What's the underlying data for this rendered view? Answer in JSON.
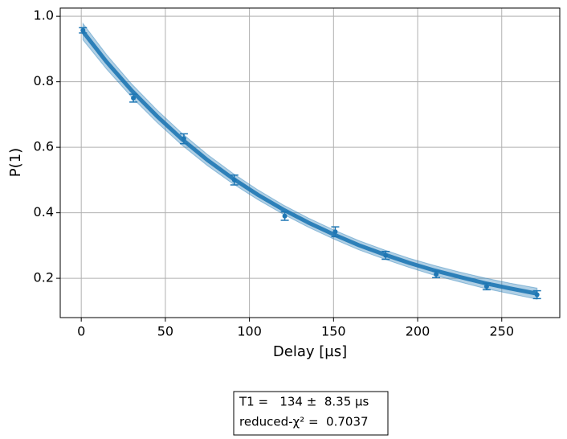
{
  "chart_data": {
    "type": "scatter",
    "xlabel": "Delay [µs]",
    "ylabel": "P(1)",
    "x": [
      1,
      31,
      61,
      91,
      121,
      151,
      181,
      211,
      241,
      271
    ],
    "series": [
      {
        "color": "#1f77b4",
        "values": [
          0.957,
          0.75,
          0.626,
          0.5,
          0.39,
          0.342,
          0.27,
          0.212,
          0.175,
          0.15
        ],
        "errors": [
          0.008,
          0.012,
          0.015,
          0.015,
          0.013,
          0.015,
          0.012,
          0.01,
          0.01,
          0.012
        ]
      }
    ],
    "fit": {
      "color": "#1f77b4",
      "x": [
        1,
        15,
        30,
        45,
        60,
        75,
        90,
        105,
        120,
        135,
        150,
        165,
        180,
        195,
        210,
        225,
        240,
        255,
        271
      ],
      "values": [
        0.953,
        0.861,
        0.773,
        0.695,
        0.624,
        0.561,
        0.505,
        0.455,
        0.41,
        0.37,
        0.334,
        0.301,
        0.273,
        0.247,
        0.224,
        0.204,
        0.185,
        0.169,
        0.153
      ],
      "upper": [
        0.978,
        0.883,
        0.793,
        0.714,
        0.642,
        0.578,
        0.521,
        0.47,
        0.424,
        0.384,
        0.348,
        0.315,
        0.287,
        0.261,
        0.239,
        0.219,
        0.201,
        0.185,
        0.17
      ],
      "lower": [
        0.928,
        0.839,
        0.753,
        0.676,
        0.606,
        0.544,
        0.489,
        0.44,
        0.396,
        0.356,
        0.32,
        0.287,
        0.259,
        0.233,
        0.209,
        0.189,
        0.169,
        0.153,
        0.136
      ]
    },
    "xlim": [
      -12.5,
      284.5
    ],
    "ylim": [
      0.08,
      1.025
    ],
    "xticks": [
      0,
      50,
      100,
      150,
      200,
      250
    ],
    "yticks": [
      0.2,
      0.4,
      0.6,
      0.8,
      {
        "value": 1,
        "label": "1.0"
      }
    ],
    "grid": true,
    "annotations": [
      "T1 =   134 ±  8.35 µs",
      "reduced-χ² =  0.7037"
    ]
  }
}
